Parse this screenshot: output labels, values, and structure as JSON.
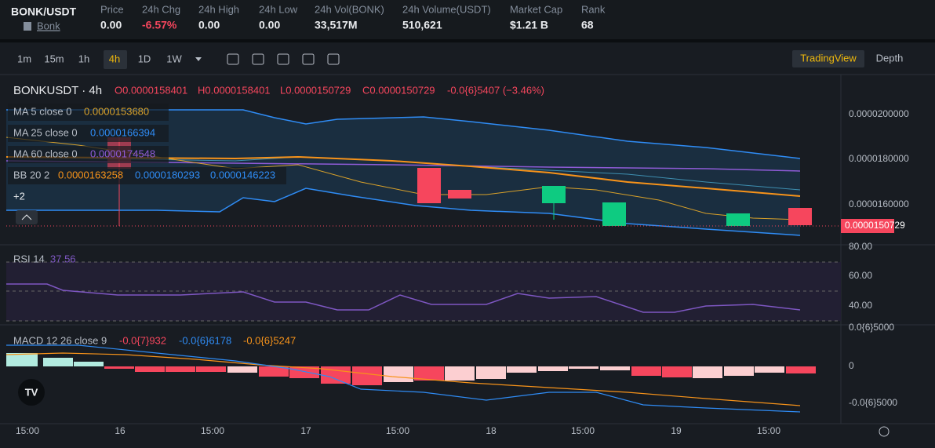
{
  "header": {
    "symbol": "BONK/USDT",
    "coin": "Bonk",
    "stats": [
      {
        "label": "Price",
        "value": "0.00"
      },
      {
        "label": "24h Chg",
        "value": "-6.57%"
      },
      {
        "label": "24h High",
        "value": "0.00"
      },
      {
        "label": "24h Low",
        "value": "0.00"
      },
      {
        "label": "24h Vol(BONK)",
        "value": "33,517M"
      },
      {
        "label": "24h Volume(USDT)",
        "value": "510,621"
      },
      {
        "label": "Market Cap",
        "value": "$1.21 B"
      },
      {
        "label": "Rank",
        "value": "68"
      }
    ]
  },
  "toolbar": {
    "intervals": [
      "1m",
      "15m",
      "1h",
      "4h",
      "1D",
      "1W"
    ],
    "views": [
      "TradingView",
      "Depth"
    ]
  },
  "main": {
    "title": "BONKUSDT · 4h",
    "ohlc": [
      "O0.0000158401",
      "H0.0000158401",
      "L0.0000150729",
      "C0.0000150729",
      "-0.0{6}5407 (−3.46%)"
    ],
    "indicators": [
      {
        "name": "MA 5 close 0",
        "values": [
          "0.0000153680"
        ]
      },
      {
        "name": "MA 25 close 0",
        "values": [
          "0.0000166394"
        ]
      },
      {
        "name": "MA 60 close 0",
        "values": [
          "0.0000174548"
        ]
      },
      {
        "name": "BB 20 2",
        "values": [
          "0.0000163258",
          "0.0000180293",
          "0.0000146223"
        ]
      }
    ],
    "more": "+2",
    "axis": [
      "0.0000200000",
      "0.0000180000",
      "0.0000160000"
    ],
    "last": "0.0000150729"
  },
  "rsi": {
    "name": "RSI 14",
    "value": "37.56",
    "axis": [
      "80.00",
      "60.00",
      "40.00"
    ]
  },
  "macd": {
    "name": "MACD 12 26 close 9",
    "values": [
      "-0.0{7}932",
      "-0.0{6}6178",
      "-0.0{6}5247"
    ],
    "axis": [
      "0.0{6}5000",
      "0",
      "-0.0{6}5000"
    ]
  },
  "time_axis": [
    "15:00",
    "16",
    "15:00",
    "17",
    "15:00",
    "18",
    "15:00",
    "19",
    "15:00"
  ]
}
